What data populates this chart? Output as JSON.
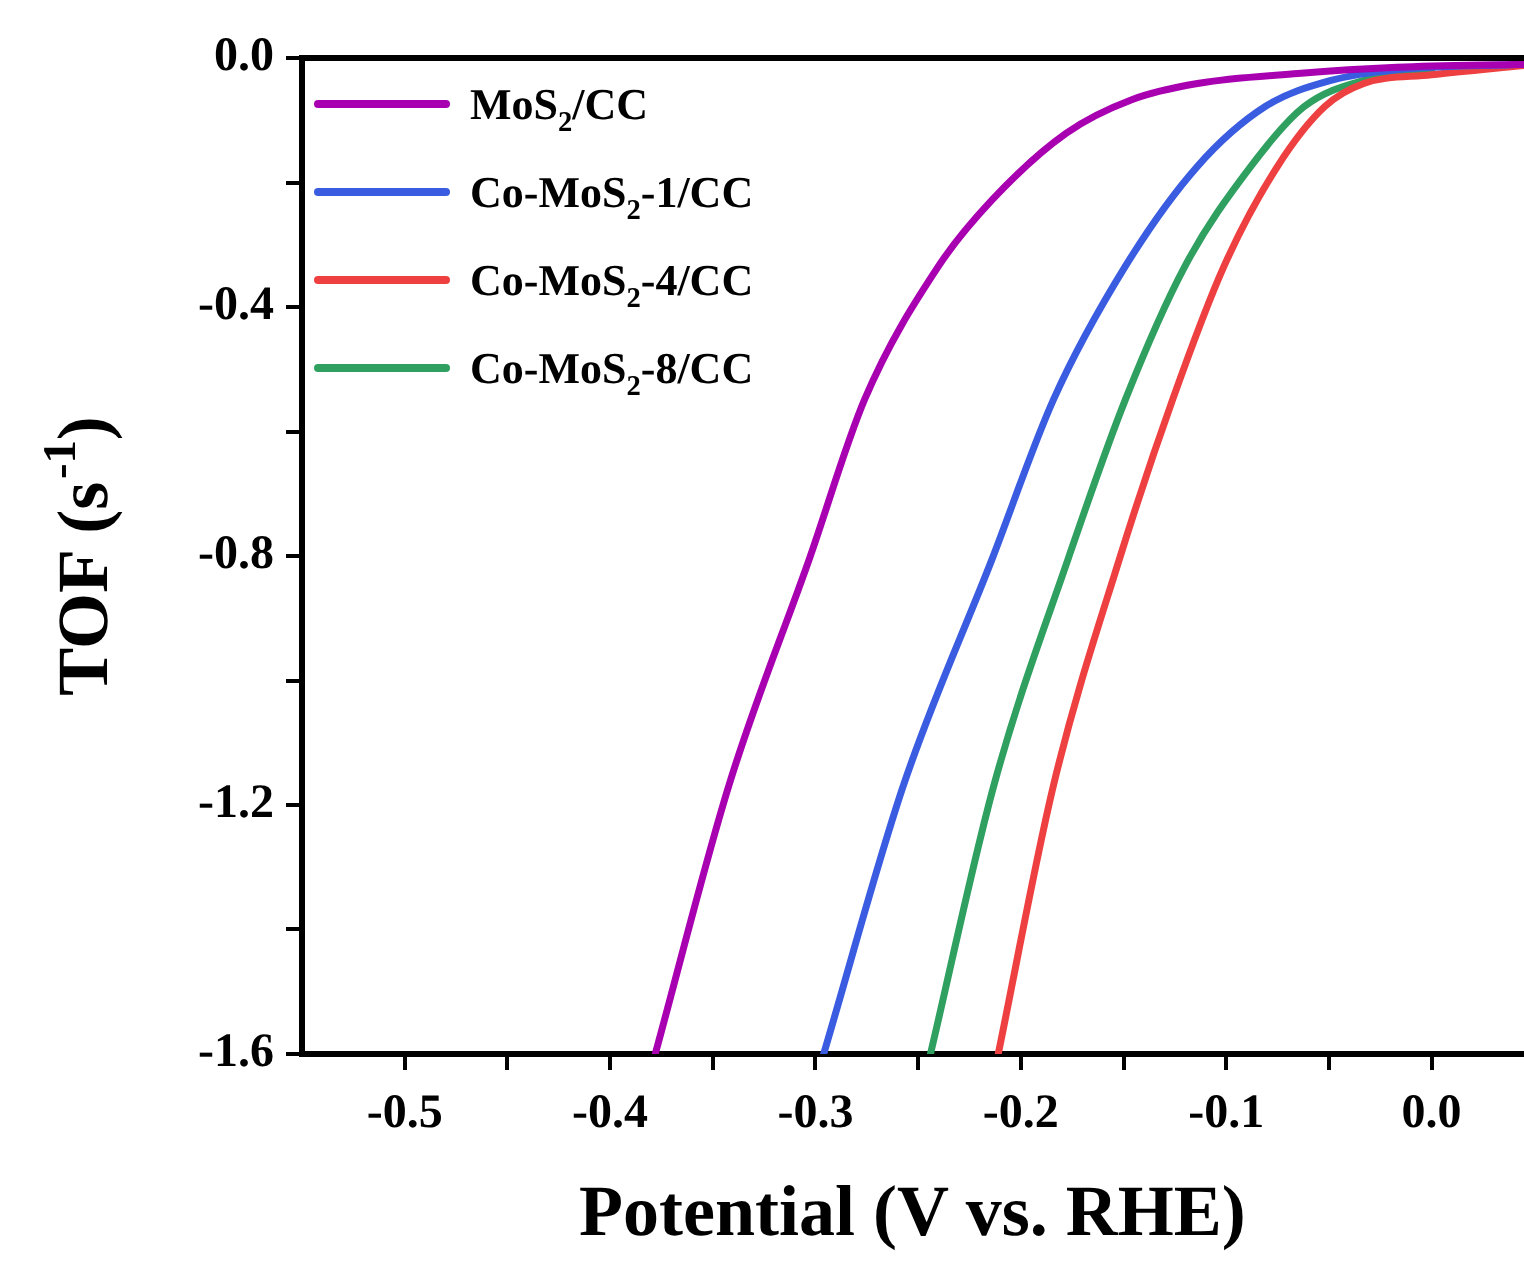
{
  "chart_data": {
    "type": "line",
    "xlabel": "Potential (V vs. RHE)",
    "ylabel": "TOF (s$^{-1}$)",
    "xlim": [
      -0.55,
      0.045
    ],
    "ylim": [
      -1.6,
      0.0
    ],
    "xticks": [
      {
        "value": -0.5,
        "label": "-0.5"
      },
      {
        "value": -0.45,
        "label": null
      },
      {
        "value": -0.4,
        "label": "-0.4"
      },
      {
        "value": -0.35,
        "label": null
      },
      {
        "value": -0.3,
        "label": "-0.3"
      },
      {
        "value": -0.25,
        "label": null
      },
      {
        "value": -0.2,
        "label": "-0.2"
      },
      {
        "value": -0.15,
        "label": null
      },
      {
        "value": -0.1,
        "label": "-0.1"
      },
      {
        "value": -0.05,
        "label": null
      },
      {
        "value": 0.0,
        "label": "0.0"
      }
    ],
    "yticks": [
      {
        "value": 0.0,
        "label": "0.0"
      },
      {
        "value": -0.2,
        "label": null
      },
      {
        "value": -0.4,
        "label": "-0.4"
      },
      {
        "value": -0.6,
        "label": null
      },
      {
        "value": -0.8,
        "label": "-0.8"
      },
      {
        "value": -1.0,
        "label": null
      },
      {
        "value": -1.2,
        "label": "-1.2"
      },
      {
        "value": -1.4,
        "label": null
      },
      {
        "value": -1.6,
        "label": "-1.6"
      }
    ],
    "grid": false,
    "legend": "top left",
    "marker": "none",
    "line_style": "solid",
    "series": [
      {
        "name": "MoS$_{2}$/CC",
        "color": "#a800b0",
        "x": [
          -0.378,
          -0.342,
          -0.303,
          -0.276,
          -0.24,
          -0.214,
          -0.178,
          -0.146,
          -0.114,
          -0.065,
          -0.017,
          0.045
        ],
        "values": [
          -1.6,
          -1.167,
          -0.805,
          -0.548,
          -0.334,
          -0.228,
          -0.121,
          -0.067,
          -0.041,
          -0.025,
          -0.015,
          -0.01
        ]
      },
      {
        "name": "Co-MoS$_{2}$-1/CC",
        "color": "#3a5ce0",
        "x": [
          -0.296,
          -0.257,
          -0.214,
          -0.184,
          -0.149,
          -0.114,
          -0.081,
          -0.049,
          -0.017,
          0.045
        ],
        "values": [
          -1.6,
          -1.167,
          -0.805,
          -0.548,
          -0.334,
          -0.174,
          -0.078,
          -0.036,
          -0.019,
          -0.01
        ]
      },
      {
        "name": "Co-MoS$_{2}$-4/CC",
        "color": "#ee4040",
        "x": [
          -0.211,
          -0.184,
          -0.152,
          -0.126,
          -0.101,
          -0.075,
          -0.052,
          -0.033,
          0.0,
          0.045
        ],
        "values": [
          -1.6,
          -1.167,
          -0.805,
          -0.548,
          -0.334,
          -0.174,
          -0.078,
          -0.041,
          -0.027,
          -0.012
        ]
      },
      {
        "name": "Co-MoS$_{2}$-8/CC",
        "color": "#30a060",
        "x": [
          -0.244,
          -0.213,
          -0.177,
          -0.149,
          -0.12,
          -0.088,
          -0.062,
          -0.033,
          0.0
        ],
        "values": [
          -1.6,
          -1.167,
          -0.805,
          -0.548,
          -0.334,
          -0.174,
          -0.078,
          -0.036,
          -0.022
        ]
      }
    ]
  }
}
